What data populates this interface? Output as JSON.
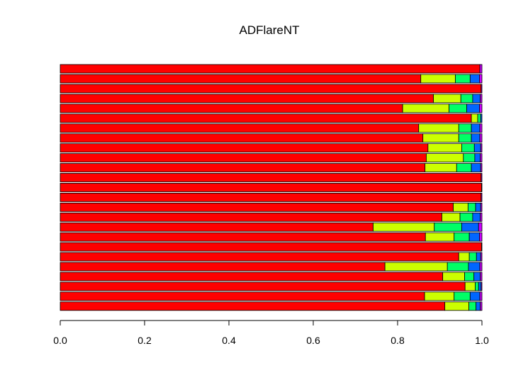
{
  "chart_data": {
    "type": "bar",
    "orientation": "horizontal",
    "stacked": true,
    "title": "ADFlareNT",
    "xlabel": "",
    "ylabel": "",
    "xlim": [
      0,
      1
    ],
    "xticks": [
      "0.0",
      "0.2",
      "0.4",
      "0.6",
      "0.8",
      "1.0"
    ],
    "grid": false,
    "legend": "none",
    "segment_colors": [
      "#ff0000",
      "#ccff00",
      "#00ff66",
      "#0066ff",
      "#cc00ff"
    ],
    "rows": [
      [
        0.995,
        0,
        0,
        0,
        0.005
      ],
      [
        0.855,
        0.082,
        0.035,
        0.022,
        0.006
      ],
      [
        0.998,
        0,
        0,
        0,
        0.002
      ],
      [
        0.885,
        0.065,
        0.028,
        0.018,
        0.004
      ],
      [
        0.812,
        0.11,
        0.042,
        0.03,
        0.006
      ],
      [
        0.975,
        0.015,
        0.007,
        0.003,
        0
      ],
      [
        0.85,
        0.095,
        0.03,
        0.02,
        0.005
      ],
      [
        0.86,
        0.085,
        0.03,
        0.02,
        0.005
      ],
      [
        0.872,
        0.08,
        0.03,
        0.015,
        0.003
      ],
      [
        0.868,
        0.088,
        0.027,
        0.013,
        0.004
      ],
      [
        0.865,
        0.075,
        0.035,
        0.022,
        0.003
      ],
      [
        0.998,
        0,
        0,
        0,
        0.002
      ],
      [
        0.999,
        0,
        0,
        0,
        0.001
      ],
      [
        0.998,
        0,
        0,
        0,
        0.002
      ],
      [
        0.932,
        0.035,
        0.018,
        0.012,
        0.003
      ],
      [
        0.905,
        0.043,
        0.03,
        0.018,
        0.004
      ],
      [
        0.742,
        0.145,
        0.065,
        0.04,
        0.008
      ],
      [
        0.866,
        0.068,
        0.036,
        0.024,
        0.006
      ],
      [
        0.999,
        0,
        0,
        0,
        0.001
      ],
      [
        0.945,
        0.025,
        0.017,
        0.01,
        0.003
      ],
      [
        0.77,
        0.148,
        0.05,
        0.027,
        0.005
      ],
      [
        0.907,
        0.052,
        0.022,
        0.015,
        0.004
      ],
      [
        0.96,
        0.024,
        0.008,
        0.006,
        0.002
      ],
      [
        0.864,
        0.07,
        0.038,
        0.023,
        0.005
      ],
      [
        0.912,
        0.057,
        0.017,
        0.01,
        0.004
      ]
    ]
  }
}
